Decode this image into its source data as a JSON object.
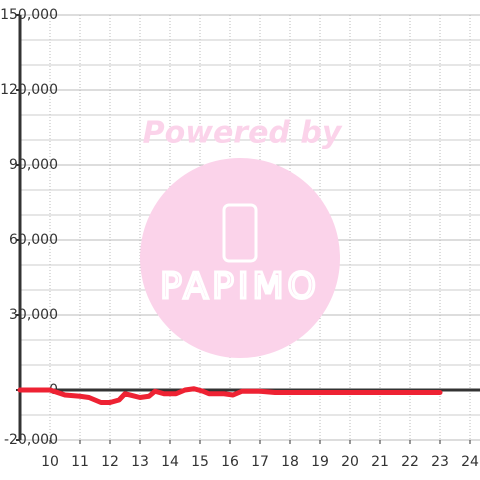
{
  "chart_data": {
    "type": "line",
    "watermark": {
      "line1": "Powered by",
      "line2": "PAPIMO"
    },
    "x": [
      9,
      10,
      10.5,
      11,
      11.3,
      11.7,
      12,
      12.3,
      12.5,
      13,
      13.3,
      13.5,
      13.8,
      14.2,
      14.5,
      14.8,
      15.1,
      15.3,
      15.8,
      16.1,
      16.4,
      17,
      17.5,
      23
    ],
    "series": [
      {
        "color": "#ee2233",
        "values": [
          0,
          0,
          -2000,
          -2500,
          -3000,
          -5000,
          -5000,
          -4000,
          -1500,
          -3000,
          -2500,
          -500,
          -1500,
          -1500,
          0,
          500,
          -500,
          -1500,
          -1500,
          -2000,
          -500,
          -500,
          -1000,
          -1000
        ]
      }
    ],
    "xlim": [
      9,
      24.333
    ],
    "xticks": [
      10,
      11,
      12,
      13,
      14,
      15,
      16,
      17,
      18,
      19,
      20,
      21,
      22,
      23,
      24
    ],
    "ylim": [
      -20000,
      150000
    ],
    "yticks": [
      {
        "value": -20000,
        "label": "-20,000"
      },
      0,
      {
        "value": 30000,
        "label": "30,000"
      },
      {
        "value": 60000,
        "label": "60,000"
      },
      {
        "value": 90000,
        "label": "90,000"
      },
      {
        "value": 120000,
        "label": "120,000"
      },
      {
        "value": 150000,
        "label": "150,000"
      }
    ],
    "yminorticks": [
      -10000,
      10000,
      20000,
      40000,
      50000,
      70000,
      80000,
      100000,
      110000,
      130000,
      140000
    ],
    "grid": true
  }
}
